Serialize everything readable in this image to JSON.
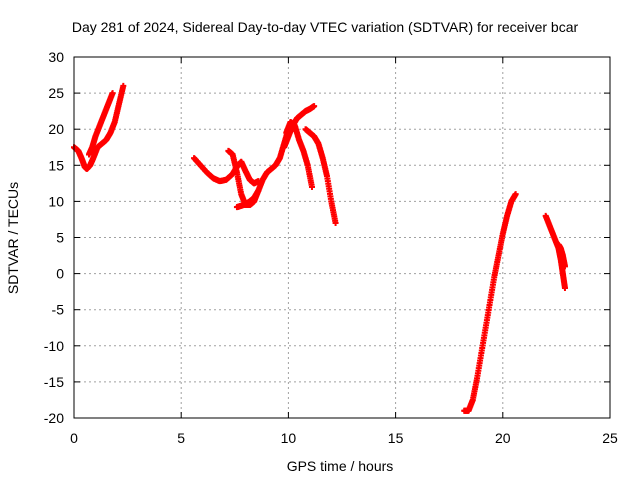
{
  "chart_data": {
    "type": "scatter",
    "title": "Day 281 of 2024, Sidereal Day-to-day VTEC variation (SDTVAR) for receiver bcar",
    "xlabel": "GPS time / hours",
    "ylabel": "SDTVAR / TECUs",
    "xlim": [
      0,
      25
    ],
    "ylim": [
      -20,
      30
    ],
    "xticks": [
      0,
      5,
      10,
      15,
      20,
      25
    ],
    "yticks": [
      -20,
      -15,
      -10,
      -5,
      0,
      5,
      10,
      15,
      20,
      25,
      30
    ],
    "grid": true,
    "marker": "+",
    "color": "#ff0000",
    "series": [
      {
        "x": [
          0.0,
          0.2,
          0.35,
          0.5,
          0.6,
          0.75,
          0.9,
          1.1,
          1.3,
          1.5,
          1.7,
          1.9,
          2.1,
          2.3
        ],
        "y": [
          17.5,
          17.0,
          16.0,
          14.8,
          14.5,
          15.0,
          16.0,
          17.5,
          18.0,
          18.5,
          19.5,
          21.0,
          23.5,
          26.0
        ]
      },
      {
        "x": [
          0.7,
          0.85,
          1.0,
          1.2,
          1.4,
          1.6,
          1.8
        ],
        "y": [
          16.5,
          17.5,
          19.0,
          20.5,
          22.0,
          23.5,
          25.0
        ]
      },
      {
        "x": [
          5.6,
          5.9,
          6.2,
          6.5,
          6.8,
          7.1,
          7.4,
          7.6,
          7.8,
          8.0,
          8.2,
          8.4,
          8.6
        ],
        "y": [
          16.0,
          15.0,
          14.0,
          13.2,
          12.8,
          13.0,
          13.8,
          14.8,
          15.5,
          14.2,
          13.0,
          12.5,
          12.8
        ]
      },
      {
        "x": [
          7.2,
          7.4,
          7.6,
          7.8,
          8.0,
          8.2,
          8.4,
          8.6
        ],
        "y": [
          17.0,
          16.5,
          14.0,
          11.0,
          9.5,
          9.5,
          10.0,
          11.5
        ]
      },
      {
        "x": [
          7.6,
          7.8,
          8.0,
          8.2,
          8.4,
          8.6,
          8.8,
          9.0,
          9.2,
          9.4,
          9.6,
          9.8,
          10.0
        ],
        "y": [
          9.2,
          9.4,
          9.6,
          10.0,
          10.5,
          11.5,
          13.0,
          14.0,
          14.5,
          15.0,
          16.0,
          18.0,
          20.0
        ]
      },
      {
        "x": [
          9.8,
          10.0,
          10.2,
          10.4,
          10.6,
          10.8,
          11.0,
          11.2
        ],
        "y": [
          17.5,
          19.0,
          20.5,
          21.5,
          22.0,
          22.5,
          22.8,
          23.2
        ]
      },
      {
        "x": [
          9.9,
          10.1,
          10.3,
          10.5,
          10.7,
          10.9,
          11.1
        ],
        "y": [
          19.5,
          21.0,
          20.5,
          18.5,
          17.0,
          15.0,
          12.0
        ]
      },
      {
        "x": [
          10.8,
          11.0,
          11.2,
          11.4,
          11.6,
          11.8,
          12.0,
          12.2
        ],
        "y": [
          20.0,
          19.5,
          19.0,
          18.0,
          16.0,
          13.5,
          10.0,
          7.0
        ]
      },
      {
        "x": [
          18.2,
          18.4,
          18.6,
          18.8,
          19.0,
          19.2,
          19.4,
          19.6,
          19.8,
          20.0,
          20.2,
          20.4,
          20.6
        ],
        "y": [
          -19.0,
          -19.0,
          -17.5,
          -14.5,
          -11.0,
          -7.5,
          -4.0,
          -0.5,
          2.5,
          5.5,
          8.0,
          10.0,
          11.0
        ]
      },
      {
        "x": [
          22.0,
          22.2,
          22.4,
          22.6,
          22.7,
          22.8,
          22.9
        ],
        "y": [
          8.0,
          6.5,
          5.0,
          3.5,
          2.0,
          0.0,
          -2.0
        ]
      },
      {
        "x": [
          22.6,
          22.7,
          22.8,
          22.9
        ],
        "y": [
          4.0,
          3.5,
          2.5,
          1.0
        ]
      }
    ]
  }
}
